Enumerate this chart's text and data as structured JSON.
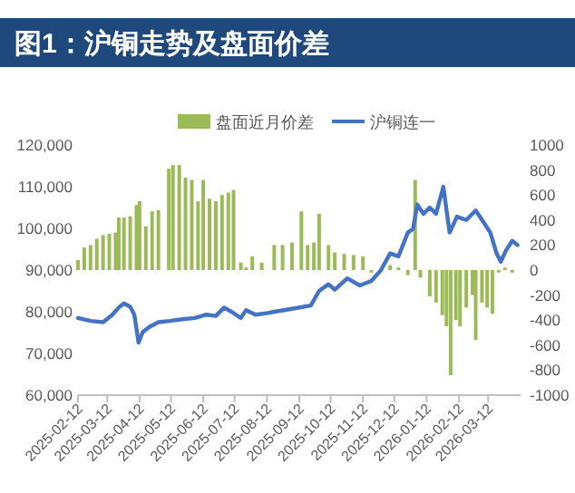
{
  "chart_data": {
    "type": "bar",
    "title": "图1：沪铜走势及盘面价差",
    "legend": "top",
    "grid": false,
    "xlim": [
      "2025-02-12",
      "2026-04-12"
    ],
    "xticks": [
      "2025-02-12",
      "2025-03-12",
      "2025-04-12",
      "2025-05-12",
      "2025-06-12",
      "2025-07-12",
      "2025-08-12",
      "2025-09-12",
      "2025-10-12",
      "2025-11-12",
      "2025-12-12",
      "2026-01-12",
      "2026-02-12",
      "2026-03-12"
    ],
    "ylim": [
      60000,
      120000
    ],
    "yticks": [
      {
        "value": 60000,
        "label": "60,000"
      },
      {
        "value": 70000,
        "label": "70,000"
      },
      {
        "value": 80000,
        "label": "80,000"
      },
      {
        "value": 90000,
        "label": "90,000"
      },
      {
        "value": 100000,
        "label": "100,000"
      },
      {
        "value": 110000,
        "label": "110,000"
      },
      {
        "value": 120000,
        "label": "120,000"
      }
    ],
    "y2lim": [
      -1000,
      1000
    ],
    "y2ticks": [
      -1000,
      -800,
      -600,
      -400,
      -200,
      0,
      200,
      400,
      600,
      800,
      1000
    ],
    "series": [
      {
        "name": "盘面近月价差",
        "axis": "y2",
        "color": "#9bbb59",
        "x": [
          "2025-02-12",
          "2025-02-18",
          "2025-02-24",
          "2025-03-02",
          "2025-03-08",
          "2025-03-14",
          "2025-03-20",
          "2025-03-23",
          "2025-03-28",
          "2025-04-03",
          "2025-04-09",
          "2025-04-12",
          "2025-04-18",
          "2025-04-24",
          "2025-04-30",
          "2025-05-10",
          "2025-05-14",
          "2025-05-20",
          "2025-05-26",
          "2025-06-01",
          "2025-06-07",
          "2025-06-12",
          "2025-06-18",
          "2025-06-24",
          "2025-06-30",
          "2025-07-06",
          "2025-07-11",
          "2025-07-18",
          "2025-07-23",
          "2025-07-29",
          "2025-08-07",
          "2025-08-19",
          "2025-08-27",
          "2025-09-05",
          "2025-09-14",
          "2025-09-20",
          "2025-09-26",
          "2025-10-01",
          "2025-10-10",
          "2025-10-16",
          "2025-10-25",
          "2025-11-03",
          "2025-11-12",
          "2025-11-20",
          "2025-12-08",
          "2025-12-16",
          "2025-12-25",
          "2026-01-01",
          "2026-01-06",
          "2026-01-15",
          "2026-01-21",
          "2026-01-27",
          "2026-01-31",
          "2026-02-04",
          "2026-02-09",
          "2026-02-13",
          "2026-02-19",
          "2026-02-25",
          "2026-02-28",
          "2026-03-06",
          "2026-03-11",
          "2026-03-16",
          "2026-03-22",
          "2026-03-28",
          "2026-04-04"
        ],
        "values": [
          80,
          180,
          200,
          250,
          280,
          290,
          300,
          420,
          420,
          430,
          520,
          550,
          350,
          470,
          480,
          810,
          840,
          840,
          740,
          720,
          550,
          720,
          570,
          550,
          600,
          620,
          640,
          60,
          20,
          110,
          60,
          200,
          200,
          220,
          470,
          200,
          220,
          450,
          200,
          140,
          130,
          120,
          110,
          -20,
          40,
          20,
          -40,
          720,
          -60,
          -210,
          -260,
          -360,
          -450,
          -840,
          -400,
          -450,
          -300,
          -200,
          -560,
          -260,
          -300,
          -350,
          -20,
          20,
          -20
        ]
      },
      {
        "name": "沪铜连一",
        "type": "line",
        "axis": "y",
        "color": "#4472c4",
        "x": [
          "2025-02-12",
          "2025-02-24",
          "2025-03-08",
          "2025-03-17",
          "2025-03-23",
          "2025-03-28",
          "2025-04-03",
          "2025-04-07",
          "2025-04-11",
          "2025-04-15",
          "2025-04-21",
          "2025-04-30",
          "2025-05-11",
          "2025-05-23",
          "2025-06-04",
          "2025-06-15",
          "2025-06-24",
          "2025-07-02",
          "2025-07-09",
          "2025-07-18",
          "2025-07-23",
          "2025-08-01",
          "2025-08-13",
          "2025-08-19",
          "2025-09-05",
          "2025-09-23",
          "2025-10-01",
          "2025-10-10",
          "2025-10-16",
          "2025-10-28",
          "2025-11-09",
          "2025-11-20",
          "2025-11-29",
          "2025-12-08",
          "2025-12-16",
          "2025-12-25",
          "2025-12-30",
          "2026-01-03",
          "2026-01-09",
          "2026-01-15",
          "2026-01-21",
          "2026-01-28",
          "2026-02-03",
          "2026-02-10",
          "2026-02-19",
          "2026-02-28",
          "2026-03-08",
          "2026-03-14",
          "2026-03-20",
          "2026-03-24",
          "2026-03-29",
          "2026-04-04",
          "2026-04-09"
        ],
        "values": [
          78500,
          77800,
          77500,
          79300,
          81000,
          82000,
          81200,
          79300,
          72600,
          75100,
          76300,
          77500,
          77800,
          78200,
          78500,
          79300,
          79000,
          81000,
          80000,
          78500,
          80400,
          79300,
          79700,
          80000,
          80700,
          81500,
          85000,
          86600,
          85300,
          88000,
          86300,
          87400,
          89900,
          94000,
          93300,
          99000,
          99900,
          105700,
          103500,
          105000,
          103500,
          110000,
          99000,
          102800,
          102000,
          104300,
          101300,
          99000,
          94000,
          92000,
          94700,
          97000,
          96000
        ]
      }
    ]
  }
}
